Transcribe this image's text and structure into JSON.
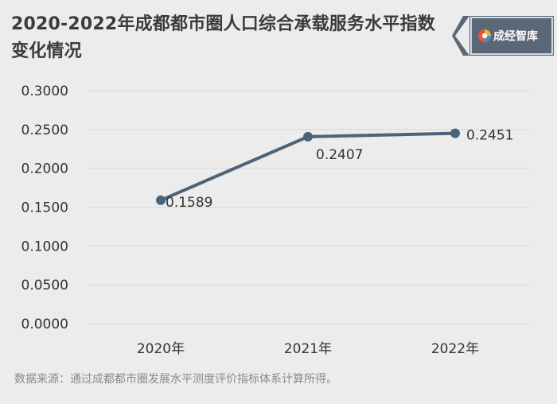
{
  "header": {
    "title": "2020-2022年成都都市圈人口综合承载服务水平指数变化情况",
    "brand": "成经智库",
    "brand_icon": "logo-swirl-icon"
  },
  "chart_data": {
    "type": "line",
    "title": "2020-2022年成都都市圈人口综合承载服务水平指数变化情况",
    "categories": [
      "2020年",
      "2021年",
      "2022年"
    ],
    "values": [
      0.1589,
      0.2407,
      0.2451
    ],
    "data_labels": [
      "0.1589",
      "0.2407",
      "0.2451"
    ],
    "y_ticks": [
      "0.0000",
      "0.0500",
      "0.1000",
      "0.1500",
      "0.2000",
      "0.2500",
      "0.3000"
    ],
    "ylim": [
      0,
      0.3
    ],
    "grid": true,
    "line_color": "#4d6378"
  },
  "footer": {
    "source": "数据来源：通过成都都市圈发展水平测度评价指标体系计算所得。"
  }
}
